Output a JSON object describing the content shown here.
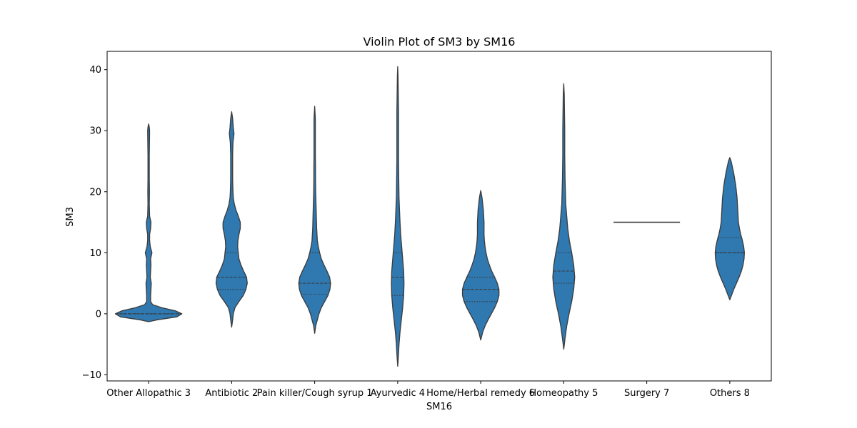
{
  "chart_data": {
    "type": "violin",
    "title": "Violin Plot of SM3 by SM16",
    "xlabel": "SM16",
    "ylabel": "SM3",
    "ylim": [
      -11,
      43
    ],
    "yticks": [
      -10,
      0,
      10,
      20,
      30,
      40
    ],
    "grid": false,
    "fill_color": "#2f78b0",
    "edge_color": "#3a3a3a",
    "categories": [
      "Other Allopathic 3",
      "Antibiotic 2",
      "Pain killer/Cough syrup 1",
      "Ayurvedic 4",
      "Home/Herbal remedy 6",
      "Homeopathy 5",
      "Surgery 7",
      "Others 8"
    ],
    "violins": [
      {
        "profile": [
          [
            -1.3,
            0
          ],
          [
            -1.0,
            0.25
          ],
          [
            -0.5,
            0.85
          ],
          [
            0,
            1.0
          ],
          [
            0.5,
            0.8
          ],
          [
            1.0,
            0.4
          ],
          [
            1.5,
            0.12
          ],
          [
            2.0,
            0.06
          ],
          [
            3.0,
            0.06
          ],
          [
            4.0,
            0.07
          ],
          [
            5.0,
            0.08
          ],
          [
            6.0,
            0.05
          ],
          [
            7.0,
            0.06
          ],
          [
            8.0,
            0.07
          ],
          [
            9.0,
            0.06
          ],
          [
            10.0,
            0.1
          ],
          [
            11.0,
            0.05
          ],
          [
            12.0,
            0.03
          ],
          [
            13.0,
            0.03
          ],
          [
            14.0,
            0.06
          ],
          [
            15.0,
            0.07
          ],
          [
            16.0,
            0.03
          ],
          [
            18.0,
            0.02
          ],
          [
            20.0,
            0.025
          ],
          [
            22.0,
            0.02
          ],
          [
            24.0,
            0.02
          ],
          [
            26.0,
            0.02
          ],
          [
            28.0,
            0.025
          ],
          [
            30.0,
            0.03
          ],
          [
            30.6,
            0.02
          ],
          [
            31.1,
            0
          ]
        ],
        "quartiles": [
          0,
          0,
          0
        ]
      },
      {
        "profile": [
          [
            -2.2,
            0
          ],
          [
            -1.0,
            0.03
          ],
          [
            0,
            0.05
          ],
          [
            1.0,
            0.1
          ],
          [
            2.0,
            0.22
          ],
          [
            3.0,
            0.35
          ],
          [
            4.0,
            0.43
          ],
          [
            5.0,
            0.47
          ],
          [
            6.0,
            0.45
          ],
          [
            7.0,
            0.36
          ],
          [
            8.0,
            0.28
          ],
          [
            9.0,
            0.22
          ],
          [
            10.0,
            0.2
          ],
          [
            11.0,
            0.18
          ],
          [
            12.0,
            0.19
          ],
          [
            13.0,
            0.22
          ],
          [
            14.0,
            0.26
          ],
          [
            15.0,
            0.26
          ],
          [
            16.0,
            0.2
          ],
          [
            17.0,
            0.13
          ],
          [
            18.0,
            0.08
          ],
          [
            19.0,
            0.05
          ],
          [
            20.0,
            0.04
          ],
          [
            22.0,
            0.03
          ],
          [
            24.0,
            0.03
          ],
          [
            26.0,
            0.03
          ],
          [
            28.0,
            0.04
          ],
          [
            29.5,
            0.07
          ],
          [
            30.5,
            0.05
          ],
          [
            32.0,
            0.03
          ],
          [
            33.1,
            0
          ]
        ],
        "quartiles": [
          4,
          6,
          10
        ]
      },
      {
        "profile": [
          [
            -3.2,
            0
          ],
          [
            -2.0,
            0.03
          ],
          [
            -1.0,
            0.08
          ],
          [
            0,
            0.13
          ],
          [
            1.0,
            0.2
          ],
          [
            2.0,
            0.3
          ],
          [
            3.0,
            0.4
          ],
          [
            4.0,
            0.46
          ],
          [
            5.0,
            0.48
          ],
          [
            6.0,
            0.45
          ],
          [
            7.0,
            0.37
          ],
          [
            8.0,
            0.28
          ],
          [
            9.0,
            0.2
          ],
          [
            10.0,
            0.15
          ],
          [
            11.0,
            0.11
          ],
          [
            12.0,
            0.08
          ],
          [
            14.0,
            0.06
          ],
          [
            16.0,
            0.05
          ],
          [
            18.0,
            0.04
          ],
          [
            20.0,
            0.03
          ],
          [
            22.0,
            0.025
          ],
          [
            24.0,
            0.025
          ],
          [
            26.0,
            0.02
          ],
          [
            28.0,
            0.02
          ],
          [
            30.0,
            0.02
          ],
          [
            32.0,
            0.02
          ],
          [
            34.0,
            0
          ]
        ],
        "quartiles": [
          3.2,
          5,
          10
        ]
      },
      {
        "profile": [
          [
            -8.6,
            0
          ],
          [
            -7.0,
            0.02
          ],
          [
            -5.0,
            0.04
          ],
          [
            -3.0,
            0.07
          ],
          [
            -1.0,
            0.11
          ],
          [
            1.0,
            0.15
          ],
          [
            3.0,
            0.18
          ],
          [
            5.0,
            0.19
          ],
          [
            7.0,
            0.18
          ],
          [
            9.0,
            0.15
          ],
          [
            11.0,
            0.12
          ],
          [
            13.0,
            0.09
          ],
          [
            15.0,
            0.07
          ],
          [
            17.0,
            0.055
          ],
          [
            19.0,
            0.04
          ],
          [
            21.0,
            0.035
          ],
          [
            23.0,
            0.03
          ],
          [
            25.0,
            0.025
          ],
          [
            27.0,
            0.025
          ],
          [
            29.0,
            0.025
          ],
          [
            31.0,
            0.025
          ],
          [
            33.0,
            0.025
          ],
          [
            35.0,
            0.02
          ],
          [
            37.0,
            0.015
          ],
          [
            39.0,
            0.01
          ],
          [
            40.5,
            0
          ]
        ],
        "quartiles": [
          3,
          6,
          10
        ]
      },
      {
        "profile": [
          [
            -4.3,
            0
          ],
          [
            -3.0,
            0.06
          ],
          [
            -2.0,
            0.13
          ],
          [
            -1.0,
            0.22
          ],
          [
            0,
            0.32
          ],
          [
            1.0,
            0.42
          ],
          [
            2.0,
            0.5
          ],
          [
            3.0,
            0.55
          ],
          [
            4.0,
            0.55
          ],
          [
            5.0,
            0.5
          ],
          [
            6.0,
            0.42
          ],
          [
            7.0,
            0.33
          ],
          [
            8.0,
            0.26
          ],
          [
            9.0,
            0.2
          ],
          [
            10.0,
            0.16
          ],
          [
            11.0,
            0.13
          ],
          [
            12.0,
            0.11
          ],
          [
            13.0,
            0.1
          ],
          [
            14.0,
            0.1
          ],
          [
            15.0,
            0.1
          ],
          [
            16.0,
            0.09
          ],
          [
            17.0,
            0.08
          ],
          [
            18.0,
            0.06
          ],
          [
            19.0,
            0.04
          ],
          [
            20.2,
            0
          ]
        ],
        "quartiles": [
          2,
          4,
          6
        ]
      },
      {
        "profile": [
          [
            -5.8,
            0
          ],
          [
            -4.0,
            0.04
          ],
          [
            -2.0,
            0.09
          ],
          [
            0,
            0.16
          ],
          [
            2.0,
            0.24
          ],
          [
            4.0,
            0.3
          ],
          [
            6.0,
            0.33
          ],
          [
            8.0,
            0.3
          ],
          [
            10.0,
            0.24
          ],
          [
            12.0,
            0.17
          ],
          [
            14.0,
            0.12
          ],
          [
            16.0,
            0.09
          ],
          [
            18.0,
            0.06
          ],
          [
            20.0,
            0.05
          ],
          [
            22.0,
            0.04
          ],
          [
            24.0,
            0.035
          ],
          [
            26.0,
            0.03
          ],
          [
            28.0,
            0.03
          ],
          [
            30.0,
            0.03
          ],
          [
            32.0,
            0.025
          ],
          [
            34.0,
            0.02
          ],
          [
            36.0,
            0.015
          ],
          [
            37.7,
            0
          ]
        ],
        "quartiles": [
          5,
          7,
          10
        ]
      },
      {
        "profile": [
          [
            15,
            1
          ],
          [
            15,
            1
          ]
        ],
        "quartiles": [
          15,
          15,
          15
        ]
      },
      {
        "profile": [
          [
            2.3,
            0
          ],
          [
            3.0,
            0.05
          ],
          [
            4.0,
            0.12
          ],
          [
            5.0,
            0.2
          ],
          [
            6.0,
            0.28
          ],
          [
            7.0,
            0.35
          ],
          [
            8.0,
            0.4
          ],
          [
            9.0,
            0.43
          ],
          [
            10.0,
            0.44
          ],
          [
            11.0,
            0.42
          ],
          [
            12.0,
            0.38
          ],
          [
            13.0,
            0.33
          ],
          [
            14.0,
            0.29
          ],
          [
            15.0,
            0.26
          ],
          [
            16.0,
            0.25
          ],
          [
            17.0,
            0.24
          ],
          [
            18.0,
            0.23
          ],
          [
            19.0,
            0.22
          ],
          [
            20.0,
            0.2
          ],
          [
            21.0,
            0.18
          ],
          [
            22.0,
            0.15
          ],
          [
            23.0,
            0.12
          ],
          [
            24.0,
            0.08
          ],
          [
            25.0,
            0.04
          ],
          [
            25.6,
            0
          ]
        ],
        "quartiles": [
          10,
          10,
          12.5
        ]
      }
    ]
  }
}
